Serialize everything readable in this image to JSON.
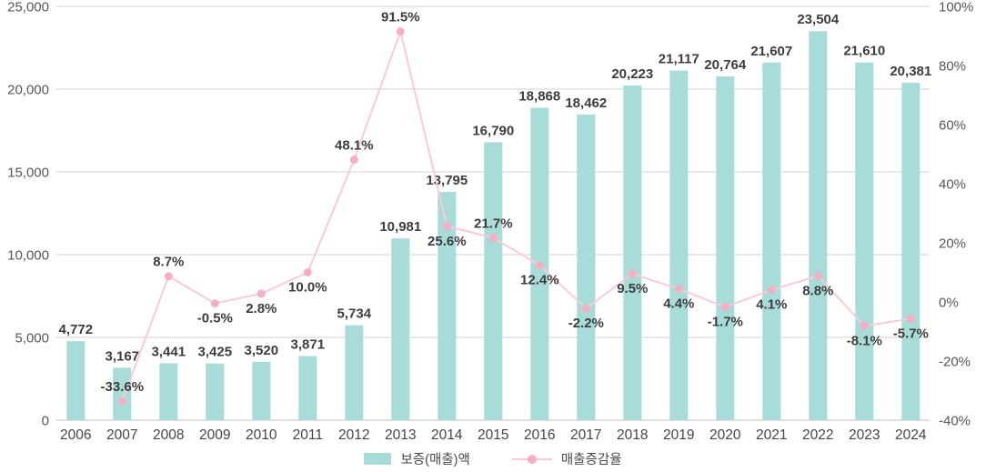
{
  "legend": {
    "bar_label": "보증(매출)액",
    "line_label": "매출증감율"
  },
  "colors": {
    "bar": "#a8dcd8",
    "line": "#f8cbd7",
    "marker": "#f5afc3",
    "grid": "#d2d2d2",
    "baseline": "#c2c2c2",
    "label_text": "#3d3d3d",
    "axis_text": "#565656"
  },
  "chart_data": {
    "type": "bar",
    "subtype": "bar+line combo",
    "title": "",
    "xlabel": "",
    "ylabel_left": "",
    "ylabel_right": "",
    "grid": true,
    "legend_position": "bottom-center",
    "categories": [
      "2006",
      "2007",
      "2008",
      "2009",
      "2010",
      "2011",
      "2012",
      "2013",
      "2014",
      "2015",
      "2016",
      "2017",
      "2018",
      "2019",
      "2020",
      "2021",
      "2022",
      "2023",
      "2024"
    ],
    "left_axis": {
      "min": 0,
      "max": 25000,
      "step": 5000,
      "ticks": [
        "0",
        "5,000",
        "10,000",
        "15,000",
        "20,000",
        "25,000"
      ]
    },
    "right_axis": {
      "min": -40,
      "max": 100,
      "step": 20,
      "ticks": [
        "-40%",
        "-20%",
        "0%",
        "20%",
        "40%",
        "60%",
        "80%",
        "100%"
      ]
    },
    "series": [
      {
        "name": "보증(매출)액",
        "type": "bar",
        "axis": "left",
        "values": [
          4772,
          3167,
          3441,
          3425,
          3520,
          3871,
          5734,
          10981,
          13795,
          16790,
          18868,
          18462,
          20223,
          21117,
          20764,
          21607,
          23504,
          21610,
          20381
        ],
        "labels": [
          "4,772",
          "3,167",
          "3,441",
          "3,425",
          "3,520",
          "3,871",
          "5,734",
          "10,981",
          "13,795",
          "16,790",
          "18,868",
          "18,462",
          "20,223",
          "21,117",
          "20,764",
          "21,607",
          "23,504",
          "21,610",
          "20,381"
        ]
      },
      {
        "name": "매출증감율",
        "type": "line",
        "axis": "right",
        "values": [
          null,
          -33.6,
          8.7,
          -0.5,
          2.8,
          10.0,
          48.1,
          91.5,
          25.6,
          21.7,
          12.4,
          -2.2,
          9.5,
          4.4,
          -1.7,
          4.1,
          8.8,
          -8.1,
          -5.7
        ],
        "labels": [
          null,
          "-33.6%",
          "8.7%",
          "-0.5%",
          "2.8%",
          "10.0%",
          "48.1%",
          "91.5%",
          "25.6%",
          "21.7%",
          "12.4%",
          "-2.2%",
          "9.5%",
          "4.4%",
          "-1.7%",
          "4.1%",
          "8.8%",
          "-8.1%",
          "-5.7%"
        ],
        "label_positions": [
          null,
          "above",
          "above",
          "below",
          "below",
          "below",
          "above",
          "above",
          "below",
          "above",
          "below",
          "below",
          "below",
          "below",
          "below",
          "below",
          "below",
          "below",
          "below"
        ]
      }
    ]
  }
}
